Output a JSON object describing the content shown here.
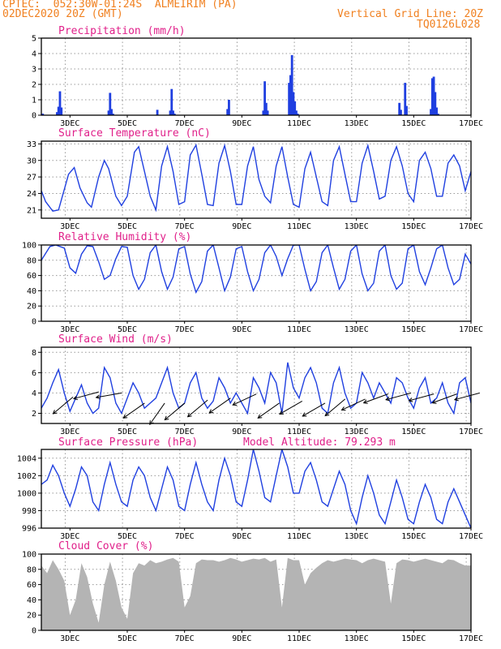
{
  "header": {
    "line1": "CPTEC:  052:30W-01:24S  ALMEIRIM (PA)",
    "line2_left": "02DEC2020 20Z (GMT)",
    "line2_right": "Vertical Grid Line: 20Z",
    "line3_right": "TQ0126L028"
  },
  "colors": {
    "header": "#f08020",
    "title": "#e0208a",
    "line": "#2040e0",
    "bar": "#1f3fe0",
    "cloud": "#b4b4b4"
  },
  "x_axis": {
    "labels": [
      "3DEC",
      "5DEC",
      "7DEC",
      "9DEC",
      "11DEC",
      "13DEC",
      "15DEC",
      "17DEC"
    ],
    "range_days": [
      2.0,
      17.0
    ]
  },
  "chart_data": [
    {
      "id": "precip",
      "type": "bar",
      "title": "Precipitation (mm/h)",
      "ylim": [
        0,
        5
      ],
      "yticks": [
        "0",
        "1",
        "2",
        "3",
        "4",
        "5"
      ],
      "x_days": [
        2.05,
        2.55,
        2.6,
        2.65,
        2.7,
        4.35,
        4.4,
        4.45,
        4.5,
        6.05,
        6.5,
        6.55,
        6.6,
        6.65,
        8.5,
        8.55,
        9.75,
        9.8,
        9.85,
        9.9,
        10.65,
        10.7,
        10.75,
        10.8,
        10.85,
        10.9,
        10.95,
        14.5,
        14.55,
        14.7,
        14.75,
        15.6,
        15.65,
        15.7,
        15.75,
        15.8,
        15.85
      ],
      "values": [
        0.1,
        0.2,
        0.55,
        1.55,
        0.5,
        0.3,
        1.45,
        0.4,
        0.1,
        0.35,
        0.3,
        1.7,
        0.3,
        0.1,
        0.4,
        1.0,
        0.3,
        2.2,
        0.8,
        0.3,
        2.1,
        2.6,
        3.9,
        1.5,
        0.9,
        0.3,
        0.1,
        0.8,
        0.35,
        2.1,
        0.6,
        0.4,
        2.4,
        2.5,
        1.5,
        0.5,
        0.1
      ]
    },
    {
      "id": "temp",
      "type": "line",
      "title": "Surface Temperature (nC)",
      "ylim": [
        19.5,
        33.5
      ],
      "yticks": [
        "21",
        "24",
        "27",
        "30",
        "33"
      ],
      "x_days": [
        2.0,
        2.15,
        2.4,
        2.6,
        2.95,
        3.15,
        3.35,
        3.6,
        3.75,
        4.0,
        4.2,
        4.35,
        4.6,
        4.8,
        5.0,
        5.25,
        5.4,
        5.6,
        5.8,
        6.0,
        6.2,
        6.4,
        6.6,
        6.8,
        7.0,
        7.2,
        7.4,
        7.6,
        7.8,
        8.0,
        8.2,
        8.4,
        8.6,
        8.8,
        9.0,
        9.2,
        9.4,
        9.6,
        9.8,
        10.0,
        10.2,
        10.4,
        10.6,
        10.8,
        11.0,
        11.2,
        11.4,
        11.6,
        11.8,
        12.0,
        12.2,
        12.4,
        12.6,
        12.8,
        13.0,
        13.2,
        13.4,
        13.6,
        13.8,
        14.0,
        14.2,
        14.4,
        14.6,
        14.8,
        15.0,
        15.2,
        15.4,
        15.6,
        15.8,
        16.0,
        16.2,
        16.4,
        16.6,
        16.8,
        17.0
      ],
      "values": [
        24.5,
        22.5,
        20.8,
        21.0,
        27.5,
        28.7,
        25.0,
        22.3,
        21.5,
        27.0,
        30.0,
        28.5,
        23.5,
        21.8,
        23.5,
        31.5,
        32.5,
        28.0,
        23.5,
        21.0,
        29.0,
        32.5,
        28.0,
        22.0,
        22.5,
        31.0,
        32.8,
        27.5,
        22.0,
        21.8,
        29.5,
        32.7,
        28.0,
        22.0,
        22.0,
        29.0,
        32.5,
        26.5,
        23.5,
        22.3,
        29.0,
        32.5,
        27.0,
        22.0,
        21.5,
        28.5,
        31.5,
        27.0,
        22.5,
        21.8,
        30.0,
        32.5,
        27.5,
        22.5,
        22.5,
        29.5,
        32.7,
        28.0,
        23.0,
        23.5,
        30.0,
        32.5,
        29.0,
        24.0,
        22.5,
        30.0,
        31.5,
        28.5,
        23.5,
        23.5,
        29.5,
        31.0,
        29.0,
        24.5,
        28.0
      ]
    },
    {
      "id": "rh",
      "type": "line",
      "title": "Relative Humidity (%)",
      "ylim": [
        0,
        100
      ],
      "yticks": [
        "0",
        "20",
        "40",
        "60",
        "80",
        "100"
      ],
      "x_days": [
        2.0,
        2.3,
        2.5,
        2.8,
        3.0,
        3.2,
        3.4,
        3.6,
        3.8,
        4.0,
        4.2,
        4.4,
        4.6,
        4.8,
        5.0,
        5.2,
        5.4,
        5.6,
        5.8,
        6.0,
        6.2,
        6.4,
        6.6,
        6.8,
        7.0,
        7.2,
        7.4,
        7.6,
        7.8,
        8.0,
        8.2,
        8.4,
        8.6,
        8.8,
        9.0,
        9.2,
        9.4,
        9.6,
        9.8,
        10.0,
        10.2,
        10.4,
        10.6,
        10.8,
        11.0,
        11.2,
        11.4,
        11.6,
        11.8,
        12.0,
        12.2,
        12.4,
        12.6,
        12.8,
        13.0,
        13.2,
        13.4,
        13.6,
        13.8,
        14.0,
        14.2,
        14.4,
        14.6,
        14.8,
        15.0,
        15.2,
        15.4,
        15.6,
        15.8,
        16.0,
        16.2,
        16.4,
        16.6,
        16.8,
        17.0
      ],
      "values": [
        80,
        98,
        100,
        96,
        70,
        63,
        88,
        99,
        98,
        78,
        55,
        60,
        82,
        98,
        97,
        60,
        42,
        55,
        90,
        100,
        65,
        42,
        58,
        95,
        98,
        62,
        38,
        52,
        92,
        100,
        70,
        40,
        58,
        95,
        98,
        65,
        40,
        55,
        90,
        100,
        85,
        60,
        82,
        100,
        100,
        68,
        40,
        52,
        90,
        100,
        70,
        42,
        55,
        92,
        100,
        62,
        40,
        50,
        92,
        100,
        60,
        42,
        50,
        95,
        100,
        65,
        48,
        70,
        95,
        100,
        70,
        48,
        55,
        88,
        75
      ]
    },
    {
      "id": "wind",
      "type": "line",
      "title": "Surface Wind (m/s)",
      "ylim": [
        1,
        8.5
      ],
      "yticks": [
        "2",
        "4",
        "6",
        "8"
      ],
      "x_days": [
        2.0,
        2.2,
        2.4,
        2.6,
        2.8,
        3.0,
        3.2,
        3.4,
        3.6,
        3.8,
        4.0,
        4.2,
        4.4,
        4.6,
        4.8,
        5.0,
        5.2,
        5.4,
        5.6,
        5.8,
        6.0,
        6.2,
        6.4,
        6.6,
        6.8,
        7.0,
        7.2,
        7.4,
        7.6,
        7.8,
        8.0,
        8.2,
        8.4,
        8.6,
        8.8,
        9.0,
        9.2,
        9.4,
        9.6,
        9.8,
        10.0,
        10.2,
        10.4,
        10.6,
        10.8,
        11.0,
        11.2,
        11.4,
        11.6,
        11.8,
        12.0,
        12.2,
        12.4,
        12.6,
        12.8,
        13.0,
        13.2,
        13.4,
        13.6,
        13.8,
        14.0,
        14.2,
        14.4,
        14.6,
        14.8,
        15.0,
        15.2,
        15.4,
        15.6,
        15.8,
        16.0,
        16.2,
        16.4,
        16.6,
        16.8,
        17.0
      ],
      "values": [
        2.5,
        3.5,
        5.0,
        6.3,
        4.0,
        2.2,
        3.5,
        4.8,
        3.0,
        2.0,
        2.5,
        6.5,
        5.5,
        3.0,
        2.0,
        3.5,
        5.0,
        4.0,
        2.5,
        3.0,
        3.5,
        5.0,
        6.5,
        4.0,
        2.5,
        3.0,
        5.0,
        6.0,
        3.5,
        2.5,
        3.2,
        5.5,
        4.5,
        3.0,
        4.0,
        3.0,
        2.0,
        5.5,
        4.5,
        3.0,
        6.0,
        5.0,
        2.0,
        7.0,
        4.5,
        3.5,
        5.5,
        6.5,
        5.0,
        2.5,
        2.0,
        5.0,
        6.5,
        4.0,
        2.5,
        3.0,
        6.0,
        5.0,
        3.5,
        5.0,
        4.0,
        3.0,
        5.5,
        5.0,
        3.5,
        2.5,
        4.5,
        5.5,
        3.0,
        3.5,
        5.0,
        3.0,
        2.0,
        5.0,
        5.5,
        3.0
      ]
    },
    {
      "id": "pres",
      "type": "line",
      "title": "Surface Pressure (hPa)",
      "ylim": [
        996,
        1005
      ],
      "yticks": [
        "996",
        "998",
        "1000",
        "1002",
        "1004"
      ],
      "x_days": [
        2.0,
        2.2,
        2.4,
        2.6,
        2.8,
        3.0,
        3.2,
        3.4,
        3.6,
        3.8,
        4.0,
        4.2,
        4.4,
        4.6,
        4.8,
        5.0,
        5.2,
        5.4,
        5.6,
        5.8,
        6.0,
        6.2,
        6.4,
        6.6,
        6.8,
        7.0,
        7.2,
        7.4,
        7.6,
        7.8,
        8.0,
        8.2,
        8.4,
        8.6,
        8.8,
        9.0,
        9.2,
        9.4,
        9.6,
        9.8,
        10.0,
        10.2,
        10.4,
        10.6,
        10.8,
        11.0,
        11.2,
        11.4,
        11.6,
        11.8,
        12.0,
        12.2,
        12.4,
        12.6,
        12.8,
        13.0,
        13.2,
        13.4,
        13.6,
        13.8,
        14.0,
        14.2,
        14.4,
        14.6,
        14.8,
        15.0,
        15.2,
        15.4,
        15.6,
        15.8,
        16.0,
        16.2,
        16.4,
        16.6,
        16.8,
        17.0
      ],
      "values": [
        1001.0,
        1001.5,
        1003.2,
        1002.0,
        1000.0,
        998.5,
        1000.5,
        1003.0,
        1002.0,
        999.0,
        998.0,
        1001.0,
        1003.5,
        1001.0,
        999.0,
        998.5,
        1001.5,
        1003.0,
        1002.0,
        999.5,
        998.0,
        1000.5,
        1003.0,
        1001.5,
        998.5,
        998.0,
        1001.0,
        1003.5,
        1001.0,
        999.0,
        998.0,
        1001.5,
        1004.0,
        1002.0,
        999.0,
        998.5,
        1001.5,
        1005.0,
        1002.5,
        999.5,
        999.0,
        1002.0,
        1005.0,
        1003.0,
        1000.0,
        1000.0,
        1002.5,
        1003.5,
        1001.5,
        999.0,
        998.5,
        1000.5,
        1002.5,
        1001.0,
        998.0,
        996.5,
        999.5,
        1002.0,
        1000.0,
        997.5,
        996.5,
        999.0,
        1001.5,
        999.5,
        997.0,
        996.5,
        999.0,
        1001.0,
        999.5,
        997.0,
        996.5,
        999.0,
        1000.5,
        999.0,
        997.5,
        996.0
      ]
    },
    {
      "id": "cloud",
      "type": "area",
      "title": "Cloud Cover (%)",
      "ylim": [
        0,
        100
      ],
      "yticks": [
        "0",
        "20",
        "40",
        "60",
        "80",
        "100"
      ],
      "x_days": [
        2.0,
        2.2,
        2.4,
        2.6,
        2.8,
        3.0,
        3.2,
        3.4,
        3.6,
        3.8,
        4.0,
        4.2,
        4.4,
        4.6,
        4.8,
        5.0,
        5.2,
        5.4,
        5.6,
        5.8,
        6.0,
        6.2,
        6.4,
        6.6,
        6.8,
        7.0,
        7.2,
        7.4,
        7.6,
        7.8,
        8.0,
        8.2,
        8.4,
        8.6,
        8.8,
        9.0,
        9.2,
        9.4,
        9.6,
        9.8,
        10.0,
        10.2,
        10.4,
        10.6,
        10.8,
        11.0,
        11.2,
        11.4,
        11.6,
        11.8,
        12.0,
        12.2,
        12.4,
        12.6,
        12.8,
        13.0,
        13.2,
        13.4,
        13.6,
        13.8,
        14.0,
        14.2,
        14.4,
        14.6,
        14.8,
        15.0,
        15.2,
        15.4,
        15.6,
        15.8,
        16.0,
        16.2,
        16.4,
        16.6,
        16.8,
        17.0
      ],
      "values": [
        85,
        75,
        92,
        80,
        65,
        20,
        40,
        88,
        70,
        35,
        10,
        60,
        90,
        65,
        30,
        15,
        75,
        88,
        85,
        92,
        88,
        90,
        93,
        95,
        90,
        30,
        45,
        88,
        93,
        92,
        92,
        90,
        92,
        95,
        93,
        90,
        92,
        94,
        93,
        95,
        90,
        93,
        30,
        95,
        92,
        92,
        60,
        75,
        82,
        88,
        92,
        90,
        92,
        94,
        93,
        92,
        88,
        92,
        94,
        92,
        90,
        35,
        88,
        93,
        92,
        90,
        92,
        94,
        92,
        90,
        88,
        93,
        92,
        88,
        85,
        85
      ]
    }
  ],
  "wind_arrows": {
    "x_days": [
      2.2,
      3.1,
      3.9,
      4.7,
      5.4,
      6.1,
      6.9,
      7.7,
      8.6,
      9.4,
      10.2,
      11.0,
      11.7,
      12.4,
      13.2,
      14.0,
      14.8,
      15.6,
      16.4
    ],
    "base_speed": [
      3.6,
      4.1,
      4.0,
      3.0,
      3.0,
      3.0,
      3.3,
      3.5,
      3.9,
      3.0,
      3.2,
      3.0,
      3.4,
      3.4,
      3.9,
      4.0,
      3.9,
      3.9,
      4.0
    ],
    "direction_deg": [
      40,
      15,
      10,
      35,
      55,
      40,
      40,
      35,
      25,
      35,
      30,
      30,
      40,
      25,
      20,
      15,
      15,
      20,
      15
    ]
  },
  "pressure_extra": {
    "label": "Model Altitude: 79.293 m"
  }
}
